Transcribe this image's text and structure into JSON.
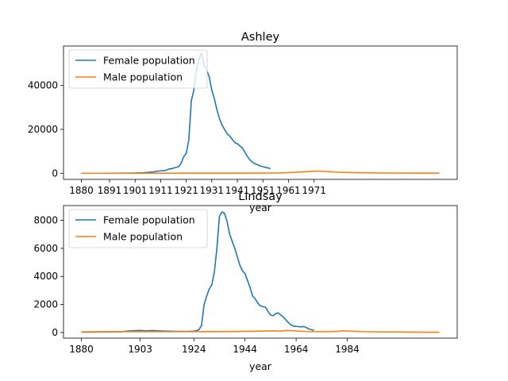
{
  "chart_data": [
    {
      "type": "line",
      "title": "Ashley",
      "xlabel": "year",
      "ylabel": "",
      "xlim": [
        1873,
        2027
      ],
      "ylim": [
        -2800,
        58000
      ],
      "x_ticks": [
        1880,
        1891,
        1901,
        1911,
        1921,
        1931,
        1941,
        1951,
        1961,
        1971
      ],
      "x_tick_labels": [
        "1880",
        "1891",
        "1901",
        "1911",
        "1921",
        "1931",
        "1941",
        "1951",
        "1961",
        "1971"
      ],
      "y_ticks": [
        0,
        20000,
        40000
      ],
      "y_tick_labels": [
        "0",
        "20000",
        "40000"
      ],
      "legend": {
        "position": "top-left",
        "entries": [
          "Female population",
          "Male population"
        ]
      },
      "series": [
        {
          "name": "Female population",
          "color": "#1f77b4",
          "points": [
            [
              1880,
              0
            ],
            [
              1890,
              0
            ],
            [
              1900,
              100
            ],
            [
              1904,
              200
            ],
            [
              1906,
              400
            ],
            [
              1908,
              600
            ],
            [
              1910,
              1000
            ],
            [
              1913,
              1300
            ],
            [
              1914,
              1800
            ],
            [
              1916,
              2300
            ],
            [
              1918,
              3000
            ],
            [
              1919,
              4500
            ],
            [
              1920,
              7500
            ],
            [
              1921,
              9000
            ],
            [
              1922,
              15000
            ],
            [
              1923,
              33000
            ],
            [
              1924,
              38000
            ],
            [
              1925,
              47000
            ],
            [
              1926,
              52000
            ],
            [
              1927,
              55000
            ],
            [
              1928,
              49000
            ],
            [
              1929,
              47000
            ],
            [
              1930,
              44000
            ],
            [
              1931,
              38000
            ],
            [
              1932,
              34000
            ],
            [
              1933,
              29000
            ],
            [
              1934,
              25000
            ],
            [
              1935,
              22000
            ],
            [
              1936,
              20000
            ],
            [
              1937,
              18000
            ],
            [
              1938,
              17000
            ],
            [
              1939,
              15500
            ],
            [
              1940,
              14000
            ],
            [
              1941,
              13500
            ],
            [
              1942,
              12500
            ],
            [
              1943,
              11500
            ],
            [
              1944,
              9500
            ],
            [
              1945,
              7500
            ],
            [
              1946,
              6000
            ],
            [
              1947,
              5000
            ],
            [
              1948,
              4300
            ],
            [
              1949,
              3800
            ],
            [
              1950,
              3300
            ],
            [
              1951,
              3000
            ],
            [
              1952,
              2700
            ],
            [
              1953,
              2400
            ],
            [
              1954,
              2200
            ]
          ]
        },
        {
          "name": "Male population",
          "color": "#ff7f0e",
          "points": [
            [
              1880,
              0
            ],
            [
              1900,
              0
            ],
            [
              1920,
              20
            ],
            [
              1940,
              40
            ],
            [
              1950,
              60
            ],
            [
              1955,
              100
            ],
            [
              1960,
              200
            ],
            [
              1963,
              400
            ],
            [
              1966,
              600
            ],
            [
              1970,
              900
            ],
            [
              1973,
              1000
            ],
            [
              1976,
              800
            ],
            [
              1980,
              500
            ],
            [
              1985,
              300
            ],
            [
              1990,
              200
            ],
            [
              2000,
              100
            ],
            [
              2010,
              60
            ],
            [
              2020,
              40
            ]
          ]
        }
      ]
    },
    {
      "type": "line",
      "title": "Lindsay",
      "xlabel": "year",
      "ylabel": "",
      "xlim": [
        1873,
        2027
      ],
      "ylim": [
        -400,
        9050
      ],
      "x_ticks": [
        1880,
        1903,
        1924,
        1944,
        1964,
        1984
      ],
      "x_tick_labels": [
        "1880",
        "1903",
        "1924",
        "1944",
        "1964",
        "1984"
      ],
      "y_ticks": [
        0,
        2000,
        4000,
        6000,
        8000
      ],
      "y_tick_labels": [
        "0",
        "2000",
        "4000",
        "6000",
        "8000"
      ],
      "legend": {
        "position": "top-left",
        "entries": [
          "Female population",
          "Male population"
        ]
      },
      "series": [
        {
          "name": "Female population",
          "color": "#1f77b4",
          "points": [
            [
              1880,
              30
            ],
            [
              1895,
              50
            ],
            [
              1898,
              100
            ],
            [
              1900,
              130
            ],
            [
              1903,
              150
            ],
            [
              1905,
              120
            ],
            [
              1908,
              140
            ],
            [
              1910,
              120
            ],
            [
              1913,
              100
            ],
            [
              1918,
              80
            ],
            [
              1922,
              80
            ],
            [
              1924,
              100
            ],
            [
              1925,
              130
            ],
            [
              1926,
              200
            ],
            [
              1927,
              500
            ],
            [
              1928,
              2000
            ],
            [
              1929,
              2600
            ],
            [
              1930,
              3100
            ],
            [
              1931,
              3400
            ],
            [
              1932,
              4300
            ],
            [
              1933,
              6000
            ],
            [
              1934,
              8300
            ],
            [
              1935,
              8600
            ],
            [
              1936,
              8500
            ],
            [
              1937,
              7900
            ],
            [
              1938,
              7000
            ],
            [
              1939,
              6500
            ],
            [
              1940,
              6000
            ],
            [
              1941,
              5400
            ],
            [
              1942,
              4800
            ],
            [
              1943,
              4400
            ],
            [
              1944,
              4200
            ],
            [
              1945,
              3700
            ],
            [
              1946,
              3200
            ],
            [
              1947,
              2600
            ],
            [
              1948,
              2400
            ],
            [
              1949,
              2100
            ],
            [
              1950,
              1900
            ],
            [
              1952,
              1800
            ],
            [
              1953,
              1500
            ],
            [
              1954,
              1250
            ],
            [
              1955,
              1200
            ],
            [
              1956,
              1350
            ],
            [
              1957,
              1400
            ],
            [
              1958,
              1250
            ],
            [
              1959,
              1100
            ],
            [
              1960,
              900
            ],
            [
              1961,
              700
            ],
            [
              1962,
              550
            ],
            [
              1963,
              450
            ],
            [
              1965,
              420
            ],
            [
              1966,
              400
            ],
            [
              1967,
              430
            ],
            [
              1968,
              350
            ],
            [
              1969,
              250
            ],
            [
              1970,
              200
            ],
            [
              1971,
              150
            ]
          ]
        },
        {
          "name": "Male population",
          "color": "#ff7f0e",
          "points": [
            [
              1880,
              50
            ],
            [
              1900,
              60
            ],
            [
              1920,
              60
            ],
            [
              1940,
              70
            ],
            [
              1950,
              100
            ],
            [
              1955,
              120
            ],
            [
              1958,
              100
            ],
            [
              1960,
              150
            ],
            [
              1962,
              130
            ],
            [
              1965,
              100
            ],
            [
              1970,
              60
            ],
            [
              1975,
              60
            ],
            [
              1980,
              80
            ],
            [
              1982,
              120
            ],
            [
              1985,
              100
            ],
            [
              1990,
              60
            ],
            [
              2000,
              40
            ],
            [
              2010,
              30
            ],
            [
              2020,
              20
            ]
          ]
        }
      ]
    }
  ]
}
